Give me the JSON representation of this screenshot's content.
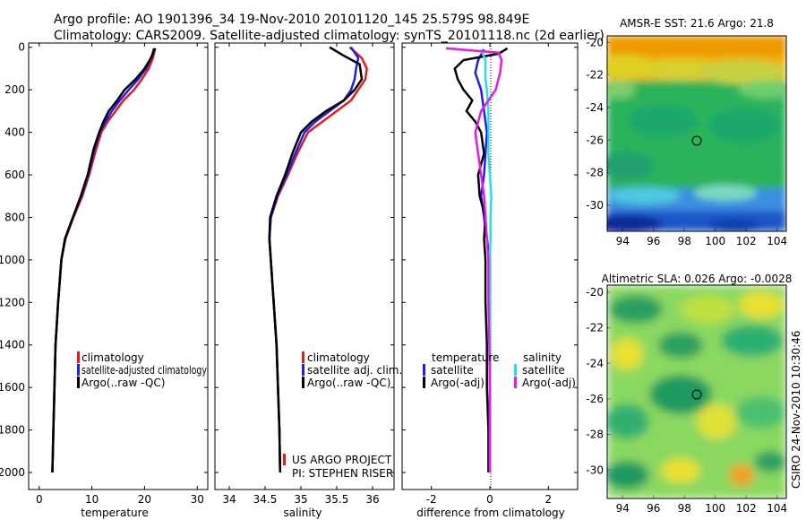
{
  "header": {
    "line1": "Argo profile: AO 1901396_34 19-Nov-2010 20101120_145 25.579S 98.849E",
    "line2": "Climatology: CARS2009. Satellite-adjusted climatology: synTS_20101118.nc (2d earlier)"
  },
  "credits": {
    "project": "US ARGO PROJECT",
    "pi": "PI: STEPHEN RISER",
    "timestamp": "CSIRO 24-Nov-2010 10:30:46"
  },
  "colors": {
    "climatology": "#e8191b",
    "satellite": "#1f1fe6",
    "argo": "#000000",
    "salinity_satellite": "#22e3e3",
    "salinity_argo": "#e619e6"
  },
  "chart_data": [
    {
      "type": "line",
      "name": "temperature",
      "xlabel": "temperature",
      "ylabel": "depth",
      "xlim": [
        -2,
        32
      ],
      "ylim": [
        2080,
        -20
      ],
      "xticks": [
        0,
        10,
        20,
        30
      ],
      "yticks": [
        0,
        200,
        400,
        600,
        800,
        1000,
        1200,
        1400,
        1600,
        1800,
        2000
      ],
      "legend": [
        "climatology",
        "satellite-adjusted climatology",
        "Argo(..raw -QC)"
      ],
      "series": [
        {
          "name": "climatology",
          "color_key": "climatology",
          "points": [
            [
              22,
              5
            ],
            [
              21.6,
              50
            ],
            [
              20.8,
              100
            ],
            [
              19.5,
              150
            ],
            [
              18,
              200
            ],
            [
              16,
              250
            ],
            [
              14.5,
              300
            ],
            [
              13,
              350
            ],
            [
              11.8,
              400
            ],
            [
              10.8,
              480
            ],
            [
              9.5,
              600
            ],
            [
              8.2,
              700
            ],
            [
              6.5,
              800
            ],
            [
              5,
              900
            ],
            [
              4.2,
              1000
            ],
            [
              3.6,
              1200
            ],
            [
              3.1,
              1400
            ],
            [
              2.9,
              1600
            ],
            [
              2.7,
              1800
            ],
            [
              2.5,
              2000
            ]
          ]
        },
        {
          "name": "satellite-adjusted climatology",
          "color_key": "satellite",
          "points": [
            [
              21.8,
              5
            ],
            [
              21.3,
              50
            ],
            [
              20.3,
              100
            ],
            [
              18.8,
              150
            ],
            [
              17,
              200
            ],
            [
              15.3,
              250
            ],
            [
              13.8,
              300
            ],
            [
              12.6,
              350
            ],
            [
              11.5,
              400
            ],
            [
              10.5,
              480
            ],
            [
              9.3,
              600
            ],
            [
              8,
              700
            ],
            [
              6.4,
              800
            ],
            [
              4.9,
              900
            ],
            [
              4.2,
              1000
            ],
            [
              3.6,
              1200
            ],
            [
              3.1,
              1400
            ],
            [
              2.9,
              1600
            ],
            [
              2.7,
              1800
            ],
            [
              2.5,
              2000
            ]
          ]
        },
        {
          "name": "Argo(..raw -QC)",
          "color_key": "argo",
          "points": [
            [
              22,
              5
            ],
            [
              21.2,
              50
            ],
            [
              20,
              100
            ],
            [
              18.3,
              150
            ],
            [
              16.2,
              200
            ],
            [
              14.8,
              250
            ],
            [
              13.2,
              300
            ],
            [
              12.2,
              350
            ],
            [
              11.4,
              400
            ],
            [
              10.3,
              480
            ],
            [
              9.2,
              600
            ],
            [
              7.9,
              700
            ],
            [
              6.4,
              800
            ],
            [
              4.9,
              900
            ],
            [
              4.2,
              1000
            ],
            [
              3.6,
              1200
            ],
            [
              3.1,
              1400
            ],
            [
              2.9,
              1600
            ],
            [
              2.7,
              1800
            ],
            [
              2.5,
              2000
            ]
          ]
        }
      ]
    },
    {
      "type": "line",
      "name": "salinity",
      "xlabel": "salinity",
      "xlim": [
        33.8,
        36.3
      ],
      "ylim": [
        2080,
        -20
      ],
      "xticks": [
        34,
        34.5,
        35,
        35.5,
        36
      ],
      "legend": [
        "climatology",
        "satellite adj. clim.",
        "Argo(..raw -QC)"
      ],
      "series": [
        {
          "name": "climatology",
          "color_key": "climatology",
          "points": [
            [
              35.68,
              0
            ],
            [
              35.85,
              50
            ],
            [
              35.92,
              100
            ],
            [
              35.9,
              150
            ],
            [
              35.8,
              200
            ],
            [
              35.7,
              250
            ],
            [
              35.5,
              300
            ],
            [
              35.3,
              350
            ],
            [
              35.1,
              400
            ],
            [
              34.95,
              500
            ],
            [
              34.82,
              600
            ],
            [
              34.68,
              700
            ],
            [
              34.58,
              800
            ],
            [
              34.56,
              900
            ],
            [
              34.58,
              1000
            ],
            [
              34.62,
              1200
            ],
            [
              34.66,
              1400
            ],
            [
              34.68,
              1600
            ],
            [
              34.7,
              1800
            ],
            [
              34.71,
              2000
            ]
          ]
        },
        {
          "name": "satellite adj. clim.",
          "color_key": "satellite",
          "points": [
            [
              35.7,
              0
            ],
            [
              35.8,
              50
            ],
            [
              35.77,
              100
            ],
            [
              35.75,
              150
            ],
            [
              35.7,
              200
            ],
            [
              35.6,
              250
            ],
            [
              35.4,
              300
            ],
            [
              35.2,
              350
            ],
            [
              35.05,
              400
            ],
            [
              34.92,
              500
            ],
            [
              34.8,
              600
            ],
            [
              34.67,
              700
            ],
            [
              34.58,
              800
            ],
            [
              34.56,
              900
            ],
            [
              34.58,
              1000
            ],
            [
              34.62,
              1200
            ],
            [
              34.66,
              1400
            ],
            [
              34.68,
              1600
            ],
            [
              34.7,
              1800
            ],
            [
              34.71,
              2000
            ]
          ]
        },
        {
          "name": "Argo(..raw -QC)",
          "color_key": "argo",
          "points": [
            [
              35.4,
              0
            ],
            [
              35.6,
              40
            ],
            [
              35.82,
              80
            ],
            [
              35.85,
              150
            ],
            [
              35.75,
              200
            ],
            [
              35.6,
              250
            ],
            [
              35.35,
              300
            ],
            [
              35.15,
              350
            ],
            [
              35,
              400
            ],
            [
              34.88,
              500
            ],
            [
              34.78,
              600
            ],
            [
              34.66,
              700
            ],
            [
              34.57,
              800
            ],
            [
              34.56,
              900
            ],
            [
              34.58,
              1000
            ],
            [
              34.62,
              1200
            ],
            [
              34.66,
              1400
            ],
            [
              34.68,
              1600
            ],
            [
              34.7,
              1800
            ],
            [
              34.71,
              2000
            ]
          ]
        }
      ]
    },
    {
      "type": "line",
      "name": "difference from climatology",
      "xlabel": "difference from climatology",
      "xlim": [
        -3,
        3
      ],
      "ylim": [
        2080,
        -20
      ],
      "xticks": [
        -2,
        0,
        2
      ],
      "legend_temperature_title": "temperature",
      "legend_salinity_title": "salinity",
      "legend": [
        "satellite",
        "Argo(-adj)",
        "satellite",
        "Argo(-adj)"
      ],
      "series": [
        {
          "name": "temperature satellite",
          "color_key": "satellite",
          "points": [
            [
              -0.2,
              10
            ],
            [
              -0.4,
              60
            ],
            [
              -0.5,
              120
            ],
            [
              -0.3,
              200
            ],
            [
              -0.2,
              300
            ],
            [
              -0.1,
              400
            ],
            [
              -0.15,
              500
            ],
            [
              -0.2,
              600
            ],
            [
              -0.3,
              700
            ],
            [
              -0.2,
              800
            ],
            [
              -0.1,
              900
            ],
            [
              0,
              1000
            ],
            [
              0,
              1200
            ],
            [
              0,
              1400
            ],
            [
              0,
              1600
            ],
            [
              0,
              1800
            ],
            [
              0,
              2000
            ]
          ]
        },
        {
          "name": "temperature Argo(-adj)",
          "color_key": "argo",
          "points": [
            [
              0.6,
              5
            ],
            [
              0.3,
              30
            ],
            [
              -0.9,
              60
            ],
            [
              -1.2,
              100
            ],
            [
              -1.1,
              150
            ],
            [
              -0.9,
              200
            ],
            [
              -0.6,
              250
            ],
            [
              -0.8,
              300
            ],
            [
              -0.5,
              350
            ],
            [
              -0.3,
              400
            ],
            [
              -0.2,
              500
            ],
            [
              -0.4,
              600
            ],
            [
              -0.35,
              700
            ],
            [
              -0.15,
              800
            ],
            [
              -0.2,
              900
            ],
            [
              -0.15,
              1000
            ],
            [
              -0.15,
              1200
            ],
            [
              -0.1,
              1400
            ],
            [
              -0.1,
              1600
            ],
            [
              -0.05,
              1800
            ],
            [
              -0.05,
              2000
            ]
          ]
        },
        {
          "name": "salinity satellite",
          "color_key": "salinity_satellite",
          "points": [
            [
              -0.3,
              10
            ],
            [
              -0.15,
              60
            ],
            [
              -0.15,
              150
            ],
            [
              -0.1,
              200
            ],
            [
              -0.05,
              300
            ],
            [
              -0.05,
              400
            ],
            [
              -0.05,
              500
            ],
            [
              0,
              600
            ],
            [
              0.05,
              700
            ],
            [
              0.02,
              800
            ],
            [
              0.02,
              900
            ],
            [
              0,
              1000
            ],
            [
              0,
              1200
            ],
            [
              0,
              1400
            ],
            [
              0,
              1600
            ],
            [
              0,
              1800
            ],
            [
              0,
              2000
            ]
          ]
        },
        {
          "name": "salinity Argo(-adj)",
          "color_key": "salinity_argo",
          "points": [
            [
              -1.5,
              5
            ],
            [
              0.3,
              25
            ],
            [
              0.4,
              60
            ],
            [
              0.35,
              120
            ],
            [
              0.2,
              200
            ],
            [
              -0.3,
              300
            ],
            [
              -0.5,
              400
            ],
            [
              -0.4,
              500
            ],
            [
              -0.3,
              600
            ],
            [
              -0.2,
              700
            ],
            [
              -0.15,
              800
            ],
            [
              -0.1,
              900
            ],
            [
              -0.05,
              1000
            ],
            [
              -0.05,
              1200
            ],
            [
              -0.02,
              1400
            ],
            [
              0,
              1600
            ],
            [
              0,
              1800
            ],
            [
              0,
              2000
            ]
          ]
        }
      ]
    },
    {
      "type": "heatmap",
      "name": "AMSR-E SST",
      "title": "AMSR-E SST: 21.6  Argo: 21.8",
      "xlim": [
        93,
        104.6
      ],
      "ylim": [
        -31.6,
        -19.6
      ],
      "xticks": [
        94,
        96,
        98,
        100,
        102,
        104
      ],
      "yticks": [
        -20,
        -22,
        -24,
        -26,
        -28,
        -30
      ],
      "profile_location": [
        98.849,
        -25.579
      ]
    },
    {
      "type": "heatmap",
      "name": "Altimetric SLA",
      "title": "Altimetric SLA: 0.026  Argo: -0.0028",
      "xlim": [
        93,
        104.6
      ],
      "ylim": [
        -31.6,
        -19.6
      ],
      "xticks": [
        94,
        96,
        98,
        100,
        102,
        104
      ],
      "yticks": [
        -20,
        -22,
        -24,
        -26,
        -28,
        -30
      ],
      "profile_location": [
        98.849,
        -25.579
      ]
    }
  ]
}
